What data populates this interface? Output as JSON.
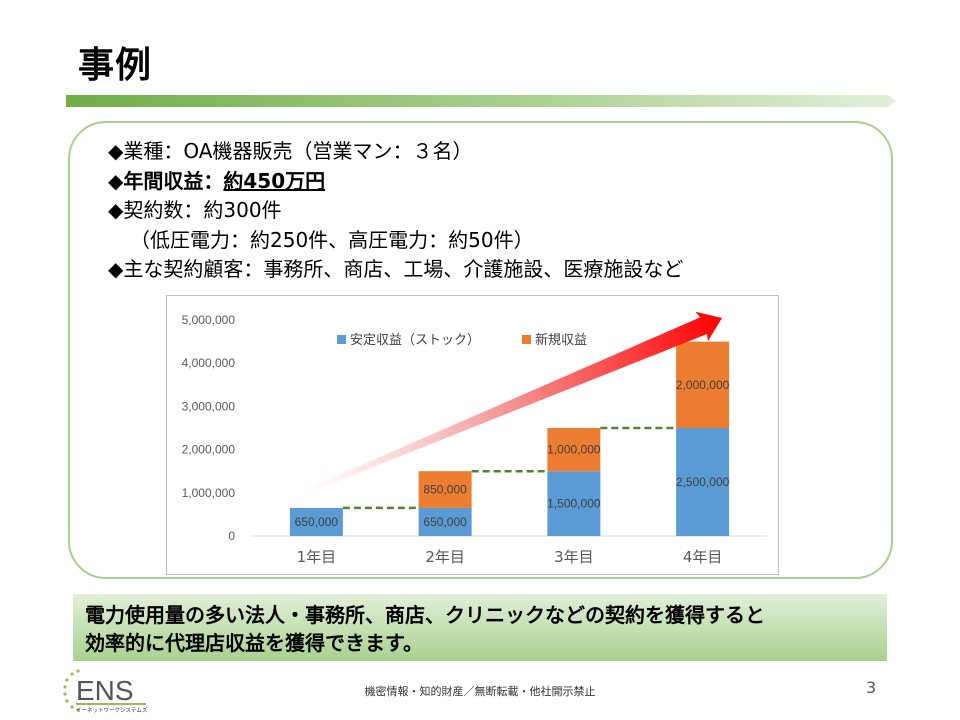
{
  "slide": {
    "title": "事例",
    "bullets": {
      "line1": "◆業種：OA機器販売（営業マン：３名）",
      "line2_label": "◆年間収益：",
      "line2_value": "約450万円",
      "line3": "◆契約数：約300件",
      "line4": "（低圧電力：約250件、高圧電力：約50件）",
      "line5": "◆主な契約顧客：事務所、商店、工場、介護施設、医療施設など"
    },
    "callout": {
      "line1": "電力使用量の多い法人・事務所、商店、クリニックなどの契約を獲得すると",
      "line2": "効率的に代理店収益を獲得できます。"
    },
    "footer": {
      "note": "機密情報・知的財産／無断転載・他社開示禁止",
      "page": "3",
      "logo_text": "ENS",
      "logo_sub": "イーネットワークシステムズ"
    }
  },
  "colors": {
    "stock": "#5b9bd5",
    "new": "#ed7d31",
    "dashed": "#548235",
    "border_green": "#a9d18e",
    "arrow": "#ff0000"
  },
  "chart_data": {
    "type": "bar",
    "stacked": true,
    "categories": [
      "1年目",
      "2年目",
      "3年目",
      "4年目"
    ],
    "series": [
      {
        "name": "安定収益（ストック）",
        "values": [
          650000,
          650000,
          1500000,
          2500000
        ],
        "labels": [
          "650,000",
          "650,000",
          "1,500,000",
          "2,500,000"
        ]
      },
      {
        "name": "新規収益",
        "values": [
          0,
          850000,
          1000000,
          2000000
        ],
        "labels": [
          "",
          "850,000",
          "1,000,000",
          "2,000,000"
        ]
      }
    ],
    "ylim": [
      0,
      5000000
    ],
    "yticks": [
      0,
      1000000,
      2000000,
      3000000,
      4000000,
      5000000
    ],
    "ytick_labels": [
      "0",
      "1,000,000",
      "2,000,000",
      "3,000,000",
      "4,000,000",
      "5,000,000"
    ],
    "legend": "top-center",
    "grid": false
  }
}
